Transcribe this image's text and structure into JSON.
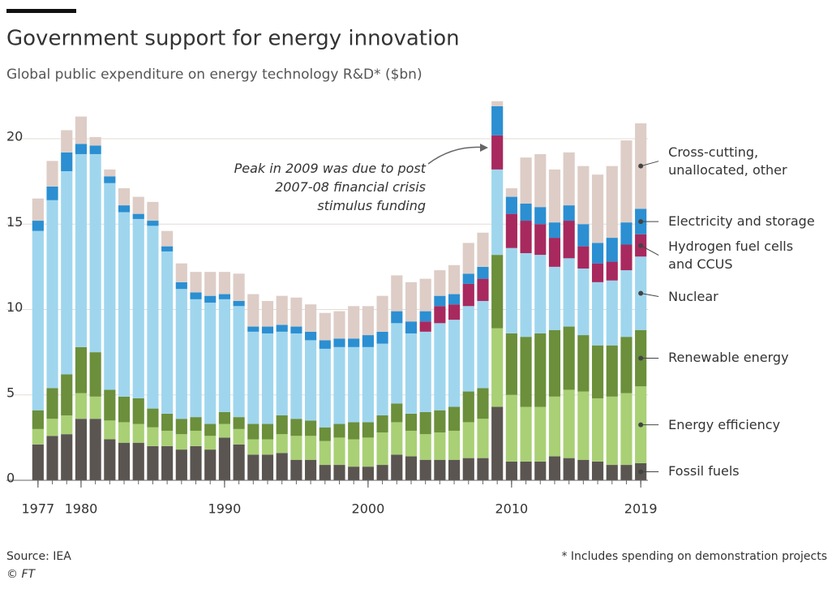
{
  "chart_data": {
    "type": "stacked_bar",
    "title": "Government support for energy innovation",
    "subtitle": "Global public expenditure on energy technology R&D* ($bn)",
    "annotation": [
      "Peak in 2009 was due to post",
      "2007-08 financial crisis",
      "stimulus funding"
    ],
    "source": "Source: IEA",
    "credit": "© FT",
    "footnote": "* Includes spending on demonstration projects",
    "x": [
      1977,
      1978,
      1979,
      1980,
      1981,
      1982,
      1983,
      1984,
      1985,
      1986,
      1987,
      1988,
      1989,
      1990,
      1991,
      1992,
      1993,
      1994,
      1995,
      1996,
      1997,
      1998,
      1999,
      2000,
      2001,
      2002,
      2003,
      2004,
      2005,
      2006,
      2007,
      2008,
      2009,
      2010,
      2011,
      2012,
      2013,
      2014,
      2015,
      2016,
      2017,
      2018,
      2019
    ],
    "xlim": [
      1976.5,
      2019.5
    ],
    "xticks": [
      1977,
      1980,
      1990,
      2000,
      2010,
      2019
    ],
    "ylim": [
      0,
      22.5
    ],
    "yticks": [
      0,
      5,
      10,
      15,
      20
    ],
    "grid": true,
    "series": [
      {
        "name": "Fossil fuels",
        "color": "#5b5551",
        "values": [
          2.1,
          2.6,
          2.7,
          3.6,
          3.6,
          2.4,
          2.2,
          2.2,
          2.0,
          2.0,
          1.8,
          2.0,
          1.8,
          2.5,
          2.1,
          1.5,
          1.5,
          1.6,
          1.2,
          1.2,
          0.9,
          0.9,
          0.8,
          0.8,
          0.9,
          1.5,
          1.4,
          1.2,
          1.2,
          1.2,
          1.3,
          1.3,
          4.3,
          1.1,
          1.1,
          1.1,
          1.4,
          1.3,
          1.2,
          1.1,
          0.9,
          0.9,
          1.0
        ]
      },
      {
        "name": "Energy efficiency",
        "color": "#a9d075",
        "values": [
          0.9,
          1.0,
          1.1,
          1.5,
          1.3,
          1.1,
          1.2,
          1.1,
          1.1,
          0.9,
          0.9,
          0.9,
          0.8,
          0.8,
          0.9,
          0.9,
          0.9,
          1.1,
          1.4,
          1.4,
          1.4,
          1.6,
          1.6,
          1.7,
          1.9,
          1.9,
          1.5,
          1.5,
          1.6,
          1.7,
          2.1,
          2.3,
          4.6,
          3.9,
          3.2,
          3.2,
          3.5,
          4.0,
          4.0,
          3.7,
          4.0,
          4.2,
          4.5
        ]
      },
      {
        "name": "Renewable energy",
        "color": "#6b8f3b",
        "values": [
          1.1,
          1.8,
          2.4,
          2.7,
          2.6,
          1.8,
          1.5,
          1.5,
          1.1,
          1.0,
          0.9,
          0.8,
          0.7,
          0.7,
          0.7,
          0.9,
          0.9,
          1.1,
          1.0,
          0.9,
          0.8,
          0.8,
          1.0,
          0.9,
          1.0,
          1.1,
          1.0,
          1.3,
          1.3,
          1.4,
          1.8,
          1.8,
          4.3,
          3.6,
          4.1,
          4.3,
          3.9,
          3.7,
          3.3,
          3.1,
          3.0,
          3.3,
          3.3
        ]
      },
      {
        "name": "Nuclear",
        "color": "#9fd6ee",
        "values": [
          10.5,
          11.0,
          11.9,
          11.3,
          11.6,
          12.1,
          10.8,
          10.5,
          10.7,
          9.5,
          7.6,
          6.9,
          7.1,
          6.6,
          6.5,
          5.4,
          5.3,
          4.9,
          5.0,
          4.7,
          4.6,
          4.5,
          4.4,
          4.4,
          4.2,
          4.7,
          4.7,
          4.7,
          5.1,
          5.1,
          5.0,
          5.1,
          5.0,
          5.0,
          4.9,
          4.6,
          3.7,
          4.0,
          3.9,
          3.7,
          3.8,
          3.9,
          4.3
        ]
      },
      {
        "name": "Hydrogen fuel cells and CCUS",
        "color": "#a8295e",
        "values": [
          0,
          0,
          0,
          0,
          0,
          0,
          0,
          0,
          0,
          0,
          0,
          0,
          0,
          0,
          0,
          0,
          0,
          0,
          0,
          0,
          0,
          0,
          0,
          0,
          0,
          0,
          0,
          0.6,
          1.0,
          0.9,
          1.3,
          1.3,
          2.0,
          2.0,
          1.9,
          1.8,
          1.7,
          2.2,
          1.3,
          1.1,
          1.1,
          1.5,
          1.3
        ]
      },
      {
        "name": "Electricity and storage",
        "color": "#2b8fd2",
        "values": [
          0.6,
          0.8,
          1.1,
          0.6,
          0.5,
          0.4,
          0.4,
          0.3,
          0.3,
          0.3,
          0.4,
          0.4,
          0.4,
          0.3,
          0.3,
          0.3,
          0.4,
          0.4,
          0.4,
          0.5,
          0.5,
          0.5,
          0.5,
          0.7,
          0.7,
          0.7,
          0.7,
          0.6,
          0.6,
          0.6,
          0.6,
          0.7,
          1.7,
          1.0,
          1.0,
          1.0,
          0.9,
          0.9,
          1.3,
          1.2,
          1.4,
          1.3,
          1.5
        ]
      },
      {
        "name": "Cross-cutting, unallocated, other",
        "color": "#ddcdc6",
        "values": [
          1.3,
          1.5,
          1.3,
          1.6,
          0.5,
          0.4,
          1.0,
          1.0,
          1.1,
          0.9,
          1.1,
          1.2,
          1.4,
          1.3,
          1.6,
          1.9,
          1.5,
          1.7,
          1.7,
          1.6,
          1.6,
          1.6,
          1.9,
          1.7,
          2.1,
          2.1,
          2.3,
          1.9,
          1.5,
          1.7,
          1.8,
          2.0,
          0.3,
          0.5,
          2.7,
          3.1,
          3.1,
          3.1,
          3.4,
          4.0,
          4.2,
          4.8,
          5.0
        ]
      }
    ]
  }
}
